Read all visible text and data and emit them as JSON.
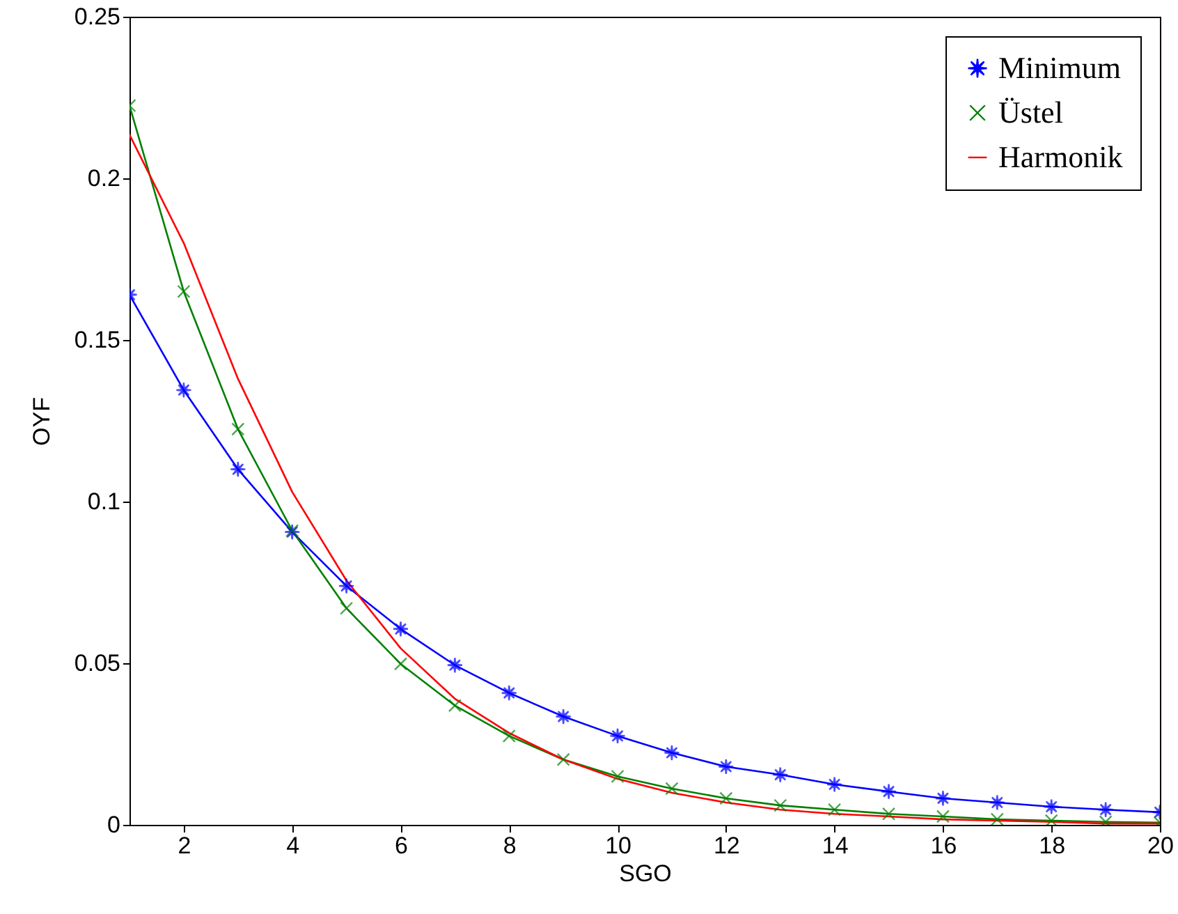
{
  "chart_data": {
    "type": "line",
    "xlabel": "SGO",
    "ylabel": "OYF",
    "x": [
      1,
      2,
      3,
      4,
      5,
      6,
      7,
      8,
      9,
      10,
      11,
      12,
      13,
      14,
      15,
      16,
      17,
      18,
      19,
      20
    ],
    "xlim": [
      1,
      20
    ],
    "xticks": [
      2,
      4,
      6,
      8,
      10,
      12,
      14,
      16,
      18,
      20
    ],
    "ylim": [
      0,
      0.25
    ],
    "yticks": [
      0,
      0.05,
      0.1,
      0.15,
      0.2,
      0.25
    ],
    "grid": false,
    "legend": "top right",
    "series": [
      {
        "name": "Minimum",
        "color": "#0000ff",
        "marker": "star",
        "values": [
          0.164,
          0.1345,
          0.11,
          0.0906,
          0.0739,
          0.0606,
          0.0494,
          0.0408,
          0.0335,
          0.0275,
          0.0223,
          0.018,
          0.0155,
          0.0125,
          0.0103,
          0.0082,
          0.0069,
          0.0056,
          0.0047,
          0.0039
        ]
      },
      {
        "name": "Üstel",
        "color": "#008000",
        "marker": "cross",
        "values": [
          0.2225,
          0.165,
          0.1224,
          0.091,
          0.067,
          0.0498,
          0.0369,
          0.0275,
          0.0202,
          0.015,
          0.0112,
          0.0082,
          0.006,
          0.0047,
          0.0034,
          0.0026,
          0.0017,
          0.0013,
          0.0009,
          0.0007
        ]
      },
      {
        "name": "Harmonik",
        "color": "#ff0000",
        "marker": "none",
        "values": [
          0.2135,
          0.18,
          0.138,
          0.103,
          0.0756,
          0.0546,
          0.039,
          0.0284,
          0.0202,
          0.0142,
          0.0099,
          0.0069,
          0.0047,
          0.0034,
          0.0026,
          0.0017,
          0.0013,
          0.0009,
          0.0004,
          0.0004
        ]
      }
    ]
  }
}
